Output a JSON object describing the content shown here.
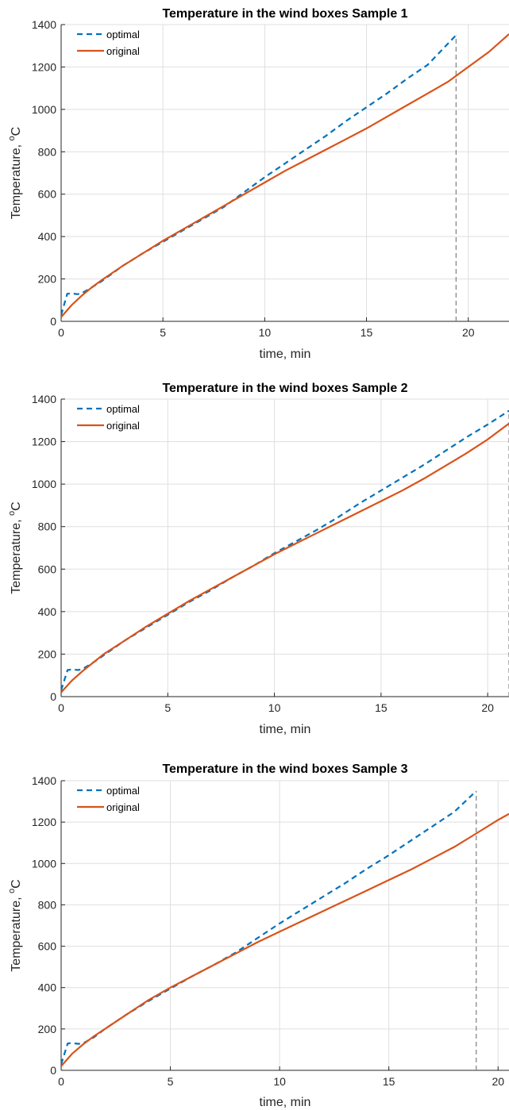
{
  "colors": {
    "optimal": "#0072BD",
    "original": "#D95319",
    "marker": "#7f7f7f",
    "grid": "#dfdfdf",
    "axis": "#262626"
  },
  "chart_data": [
    {
      "type": "line",
      "title": "Temperature in the wind boxes Sample 1",
      "xlabel": "time, min",
      "ylabel_main": "Temperature, ",
      "ylabel_sup": "o",
      "ylabel_unit": "C",
      "xlim": [
        0,
        22
      ],
      "ylim": [
        0,
        1400
      ],
      "xticks": [
        0,
        5,
        10,
        15,
        20
      ],
      "yticks": [
        0,
        200,
        400,
        600,
        800,
        1000,
        1200,
        1400
      ],
      "grid": true,
      "legend_position": "top-left",
      "vline_x": 19.4,
      "series": [
        {
          "name": "optimal",
          "style": "dashed",
          "x": [
            0,
            0.3,
            0.5,
            0.8,
            1,
            1.5,
            2,
            3,
            4,
            5,
            6,
            7,
            8,
            9,
            10,
            11,
            12,
            13,
            14,
            15,
            16,
            17,
            18,
            19,
            19.4
          ],
          "y": [
            30,
            130,
            132,
            128,
            132,
            160,
            190,
            260,
            320,
            375,
            430,
            485,
            540,
            610,
            680,
            745,
            810,
            875,
            945,
            1010,
            1075,
            1145,
            1210,
            1310,
            1350
          ]
        },
        {
          "name": "original",
          "style": "solid",
          "x": [
            0,
            0.5,
            1,
            1.5,
            2,
            3,
            4,
            5,
            6,
            7,
            8,
            9,
            10,
            11,
            12,
            13,
            14,
            15,
            16,
            17,
            18,
            19,
            20,
            21,
            22
          ],
          "y": [
            20,
            75,
            120,
            160,
            195,
            260,
            320,
            380,
            435,
            490,
            545,
            600,
            655,
            710,
            760,
            810,
            860,
            910,
            965,
            1020,
            1075,
            1130,
            1200,
            1270,
            1355
          ]
        }
      ]
    },
    {
      "type": "line",
      "title": "Temperature in the wind boxes Sample 2",
      "xlabel": "time, min",
      "ylabel_main": "Temperature, ",
      "ylabel_sup": "o",
      "ylabel_unit": "C",
      "xlim": [
        0,
        21
      ],
      "ylim": [
        0,
        1400
      ],
      "xticks": [
        0,
        5,
        10,
        15,
        20
      ],
      "yticks": [
        0,
        200,
        400,
        600,
        800,
        1000,
        1200,
        1400
      ],
      "grid": true,
      "legend_position": "top-left",
      "vline_x": 21,
      "series": [
        {
          "name": "optimal",
          "style": "dashed",
          "x": [
            0,
            0.3,
            0.5,
            0.8,
            1,
            1.5,
            2,
            3,
            4,
            5,
            6,
            7,
            8,
            9,
            10,
            11,
            12,
            13,
            14,
            15,
            16,
            17,
            18,
            19,
            20,
            21
          ],
          "y": [
            30,
            125,
            128,
            125,
            130,
            160,
            195,
            265,
            325,
            385,
            445,
            500,
            560,
            615,
            675,
            730,
            785,
            845,
            910,
            970,
            1030,
            1090,
            1155,
            1220,
            1280,
            1345
          ]
        },
        {
          "name": "original",
          "style": "solid",
          "x": [
            0,
            0.5,
            1,
            1.5,
            2,
            3,
            4,
            5,
            6,
            7,
            8,
            9,
            10,
            11,
            12,
            13,
            14,
            15,
            16,
            17,
            18,
            19,
            20,
            21
          ],
          "y": [
            20,
            75,
            120,
            160,
            200,
            265,
            330,
            390,
            450,
            505,
            560,
            615,
            670,
            720,
            770,
            820,
            870,
            920,
            970,
            1025,
            1085,
            1145,
            1210,
            1285
          ]
        }
      ]
    },
    {
      "type": "line",
      "title": "Temperature in the wind boxes Sample 3",
      "xlabel": "time, min",
      "ylabel_main": "Temperature, ",
      "ylabel_sup": "o",
      "ylabel_unit": "C",
      "xlim": [
        0,
        20.5
      ],
      "ylim": [
        0,
        1400
      ],
      "xticks": [
        0,
        5,
        10,
        15,
        20
      ],
      "yticks": [
        0,
        200,
        400,
        600,
        800,
        1000,
        1200,
        1400
      ],
      "grid": true,
      "legend_position": "top-left",
      "vline_x": 19,
      "series": [
        {
          "name": "optimal",
          "style": "dashed",
          "x": [
            0,
            0.3,
            0.5,
            0.8,
            1,
            1.5,
            2,
            3,
            4,
            5,
            6,
            7,
            8,
            9,
            10,
            11,
            12,
            13,
            14,
            15,
            16,
            17,
            18,
            19
          ],
          "y": [
            30,
            130,
            132,
            128,
            130,
            160,
            200,
            270,
            335,
            395,
            455,
            510,
            570,
            640,
            710,
            775,
            840,
            905,
            975,
            1040,
            1110,
            1180,
            1250,
            1350
          ]
        },
        {
          "name": "original",
          "style": "solid",
          "x": [
            0,
            0.5,
            1,
            1.5,
            2,
            3,
            4,
            5,
            6,
            7,
            8,
            9,
            10,
            11,
            12,
            13,
            14,
            15,
            16,
            17,
            18,
            19,
            20,
            20.5
          ],
          "y": [
            20,
            80,
            125,
            165,
            200,
            270,
            340,
            400,
            455,
            510,
            565,
            620,
            670,
            720,
            770,
            820,
            870,
            920,
            970,
            1025,
            1080,
            1145,
            1210,
            1240
          ]
        }
      ]
    }
  ]
}
